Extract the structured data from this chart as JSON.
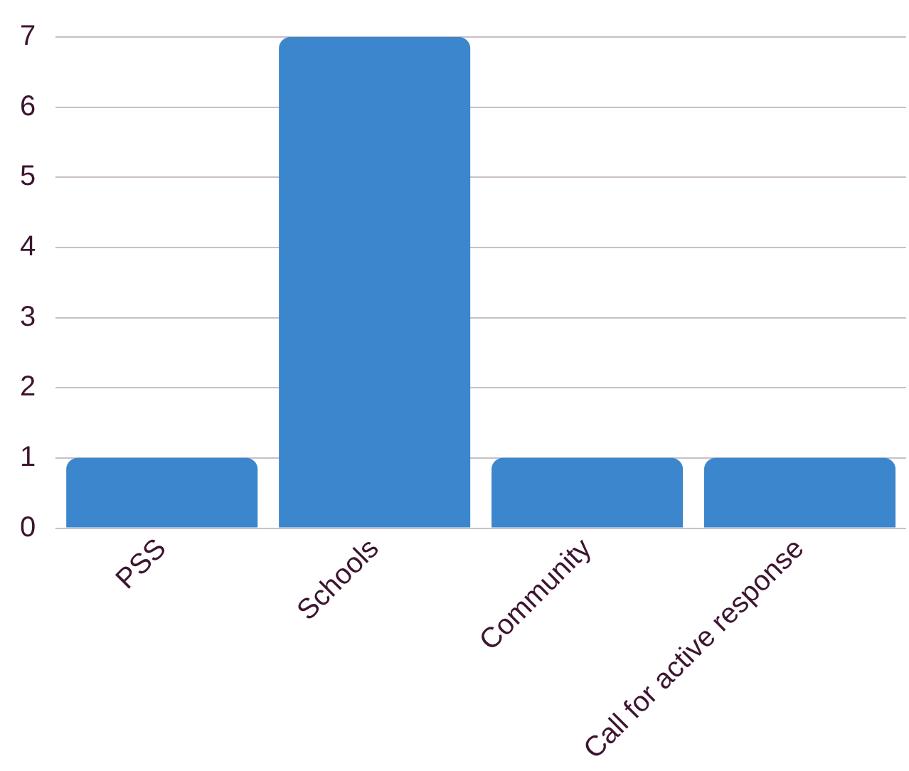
{
  "chart_data": {
    "type": "bar",
    "categories": [
      "PSS",
      "Schools",
      "Community",
      "Call for active response"
    ],
    "values": [
      1,
      7,
      1,
      1
    ],
    "color": "#3b86cc",
    "ylim": [
      0,
      7
    ],
    "yticks": [
      0,
      1,
      2,
      3,
      4,
      5,
      6,
      7
    ],
    "grid": "y",
    "legend": false
  }
}
